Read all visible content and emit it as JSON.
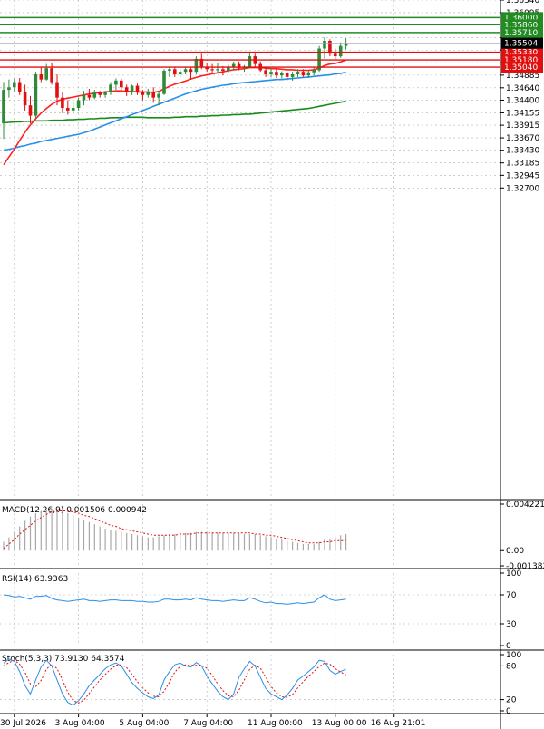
{
  "colors": {
    "bull": "#2e8b3a",
    "bear": "#e01010",
    "ma_fast": "#ff2020",
    "ma_mid": "#2a8fe8",
    "ma_slow": "#1a8a1a",
    "grid": "#b0b0b0",
    "resistance": "#228b22",
    "support": "#e01010",
    "macd_hist": "#a8a8a8",
    "macd_signal": "#e01010",
    "rsi": "#2a8fe8",
    "stoch_main": "#2a8fe8",
    "stoch_signal": "#e01010",
    "current_price_bg": "#000000"
  },
  "chart_data": [
    {
      "type": "candlestick",
      "ylim": [
        1.267,
        1.3634
      ],
      "price_ticks": [
        "1.36340",
        "1.36095",
        "1.35610",
        "1.35370",
        "1.35125",
        "1.34885",
        "1.34640",
        "1.34400",
        "1.34155",
        "1.33915",
        "1.33670",
        "1.33430",
        "1.33185",
        "1.32945",
        "1.32700"
      ],
      "levels": [
        {
          "price": 1.36,
          "label": "1.36000",
          "kind": "resistance"
        },
        {
          "price": 1.3586,
          "label": "1.35860",
          "kind": "resistance"
        },
        {
          "price": 1.3571,
          "label": "1.35710",
          "kind": "resistance"
        },
        {
          "price": 1.3533,
          "label": "1.35330",
          "kind": "support"
        },
        {
          "price": 1.3518,
          "label": "1.35180",
          "kind": "support"
        },
        {
          "price": 1.3504,
          "label": "1.35040",
          "kind": "support"
        }
      ],
      "current_price": {
        "price": 1.35504,
        "label": "1.35504"
      },
      "time_labels": [
        {
          "label": "30 Jul 2026",
          "bar": 2
        },
        {
          "label": "3 Aug 04:00",
          "bar": 14
        },
        {
          "label": "5 Aug 04:00",
          "bar": 26
        },
        {
          "label": "7 Aug 04:00",
          "bar": 38
        },
        {
          "label": "11 Aug 00:00",
          "bar": 50
        },
        {
          "label": "13 Aug 00:00",
          "bar": 62
        },
        {
          "label": "16 Aug 21:01",
          "bar": 73
        }
      ],
      "candles": [
        [
          1.3395,
          1.3475,
          1.3365,
          1.346
        ],
        [
          1.346,
          1.348,
          1.3445,
          1.3465
        ],
        [
          1.3465,
          1.3482,
          1.3455,
          1.3475
        ],
        [
          1.3475,
          1.3483,
          1.345,
          1.3455
        ],
        [
          1.3455,
          1.347,
          1.342,
          1.343
        ],
        [
          1.343,
          1.3448,
          1.3395,
          1.341
        ],
        [
          1.341,
          1.3495,
          1.3405,
          1.349
        ],
        [
          1.349,
          1.3505,
          1.3475,
          1.348
        ],
        [
          1.348,
          1.351,
          1.3478,
          1.3502
        ],
        [
          1.3502,
          1.3512,
          1.347,
          1.3475
        ],
        [
          1.3475,
          1.349,
          1.343,
          1.3445
        ],
        [
          1.3445,
          1.3455,
          1.3415,
          1.3425
        ],
        [
          1.3425,
          1.344,
          1.3412,
          1.342
        ],
        [
          1.342,
          1.3438,
          1.3413,
          1.3425
        ],
        [
          1.3425,
          1.3445,
          1.342,
          1.344
        ],
        [
          1.344,
          1.3458,
          1.343,
          1.345
        ],
        [
          1.345,
          1.3462,
          1.344,
          1.3445
        ],
        [
          1.3445,
          1.346,
          1.3442,
          1.3455
        ],
        [
          1.3455,
          1.3458,
          1.3445,
          1.345
        ],
        [
          1.345,
          1.3458,
          1.3445,
          1.3455
        ],
        [
          1.3455,
          1.3475,
          1.345,
          1.347
        ],
        [
          1.347,
          1.3482,
          1.346,
          1.3478
        ],
        [
          1.3478,
          1.3482,
          1.346,
          1.3465
        ],
        [
          1.3465,
          1.347,
          1.3448,
          1.3455
        ],
        [
          1.3455,
          1.347,
          1.345,
          1.3468
        ],
        [
          1.3468,
          1.3472,
          1.345,
          1.3455
        ],
        [
          1.3455,
          1.346,
          1.344,
          1.345
        ],
        [
          1.345,
          1.3462,
          1.3445,
          1.3455
        ],
        [
          1.3455,
          1.3465,
          1.3435,
          1.3445
        ],
        [
          1.3445,
          1.3458,
          1.343,
          1.3452
        ],
        [
          1.3452,
          1.35,
          1.345,
          1.3497
        ],
        [
          1.3497,
          1.3505,
          1.3485,
          1.35
        ],
        [
          1.35,
          1.3505,
          1.3485,
          1.349
        ],
        [
          1.349,
          1.35,
          1.3485,
          1.3495
        ],
        [
          1.3495,
          1.3505,
          1.349,
          1.35
        ],
        [
          1.35,
          1.3505,
          1.348,
          1.3495
        ],
        [
          1.3495,
          1.3525,
          1.349,
          1.352
        ],
        [
          1.352,
          1.353,
          1.35,
          1.3505
        ],
        [
          1.3505,
          1.3512,
          1.3495,
          1.35
        ],
        [
          1.35,
          1.351,
          1.3492,
          1.3498
        ],
        [
          1.3498,
          1.3512,
          1.3493,
          1.35
        ],
        [
          1.35,
          1.3506,
          1.3488,
          1.3497
        ],
        [
          1.3497,
          1.351,
          1.3492,
          1.3505
        ],
        [
          1.3505,
          1.3515,
          1.3498,
          1.351
        ],
        [
          1.351,
          1.3515,
          1.3498,
          1.3502
        ],
        [
          1.3502,
          1.3508,
          1.3495,
          1.3505
        ],
        [
          1.3505,
          1.3532,
          1.3502,
          1.3525
        ],
        [
          1.3525,
          1.353,
          1.3505,
          1.351
        ],
        [
          1.351,
          1.3515,
          1.3495,
          1.3498
        ],
        [
          1.3498,
          1.3503,
          1.3485,
          1.349
        ],
        [
          1.349,
          1.3502,
          1.3485,
          1.3495
        ],
        [
          1.3495,
          1.35,
          1.3483,
          1.3488
        ],
        [
          1.3488,
          1.3496,
          1.3482,
          1.3492
        ],
        [
          1.3492,
          1.3495,
          1.3478,
          1.3485
        ],
        [
          1.3485,
          1.3495,
          1.3478,
          1.349
        ],
        [
          1.349,
          1.35,
          1.3485,
          1.3495
        ],
        [
          1.3495,
          1.35,
          1.3485,
          1.3488
        ],
        [
          1.3488,
          1.3497,
          1.3483,
          1.3494
        ],
        [
          1.3494,
          1.3503,
          1.3488,
          1.3498
        ],
        [
          1.3498,
          1.3545,
          1.3495,
          1.354
        ],
        [
          1.354,
          1.3562,
          1.352,
          1.3555
        ],
        [
          1.3555,
          1.3558,
          1.3525,
          1.353
        ],
        [
          1.353,
          1.354,
          1.352,
          1.3525
        ],
        [
          1.3525,
          1.3552,
          1.3522,
          1.3545
        ],
        [
          1.3545,
          1.356,
          1.3538,
          1.355
        ]
      ],
      "ma_fast": [
        1.3315,
        1.333,
        1.3345,
        1.3362,
        1.3378,
        1.3392,
        1.3404,
        1.3415,
        1.3424,
        1.3432,
        1.3438,
        1.3442,
        1.3444,
        1.3446,
        1.3448,
        1.345,
        1.3452,
        1.3453,
        1.3455,
        1.3456,
        1.3457,
        1.3458,
        1.3458,
        1.3457,
        1.3457,
        1.3456,
        1.3456,
        1.3456,
        1.3455,
        1.3457,
        1.3462,
        1.3467,
        1.3471,
        1.3474,
        1.3477,
        1.3481,
        1.3484,
        1.3487,
        1.3489,
        1.3491,
        1.3493,
        1.3495,
        1.3497,
        1.3499,
        1.35,
        1.3501,
        1.3503,
        1.3503,
        1.3503,
        1.3502,
        1.3501,
        1.3501,
        1.35,
        1.3499,
        1.3499,
        1.3498,
        1.3498,
        1.3498,
        1.3499,
        1.3502,
        1.3507,
        1.351,
        1.3511,
        1.3514,
        1.3518
      ],
      "ma_mid": [
        1.3343,
        1.3345,
        1.3347,
        1.335,
        1.3352,
        1.3355,
        1.3357,
        1.336,
        1.3362,
        1.3364,
        1.3366,
        1.3368,
        1.337,
        1.3372,
        1.3374,
        1.3377,
        1.338,
        1.3384,
        1.3388,
        1.3392,
        1.3396,
        1.34,
        1.3404,
        1.3408,
        1.3412,
        1.3416,
        1.342,
        1.3424,
        1.3428,
        1.3432,
        1.3436,
        1.344,
        1.3444,
        1.3448,
        1.3452,
        1.3455,
        1.3458,
        1.3461,
        1.3463,
        1.3465,
        1.3467,
        1.3469,
        1.347,
        1.3472,
        1.3473,
        1.3474,
        1.3475,
        1.3476,
        1.3477,
        1.3478,
        1.3479,
        1.348,
        1.348,
        1.3481,
        1.3482,
        1.3483,
        1.3484,
        1.3485,
        1.3486,
        1.3487,
        1.3488,
        1.3489,
        1.3491,
        1.3492,
        1.3494
      ],
      "ma_slow": [
        1.3396,
        1.3397,
        1.3398,
        1.3398,
        1.3399,
        1.3399,
        1.34,
        1.34,
        1.34,
        1.3401,
        1.3401,
        1.3401,
        1.3402,
        1.3402,
        1.3403,
        1.3403,
        1.3404,
        1.3404,
        1.3405,
        1.3405,
        1.3406,
        1.3406,
        1.3406,
        1.3407,
        1.3407,
        1.3407,
        1.3407,
        1.3406,
        1.3406,
        1.3406,
        1.3406,
        1.3406,
        1.3407,
        1.3407,
        1.3408,
        1.3408,
        1.3408,
        1.3409,
        1.3409,
        1.341,
        1.341,
        1.3411,
        1.3411,
        1.3412,
        1.3412,
        1.3413,
        1.3413,
        1.3414,
        1.3415,
        1.3416,
        1.3417,
        1.3418,
        1.3419,
        1.342,
        1.3421,
        1.3422,
        1.3423,
        1.3424,
        1.3426,
        1.3428,
        1.343,
        1.3432,
        1.3434,
        1.3436,
        1.3438
      ]
    },
    {
      "type": "bar",
      "title": "MACD(12,26,9) 0.001506 0.000942",
      "ylim": [
        -0.00138,
        0.00422
      ],
      "ticks": [
        "0.004221",
        "0.00",
        "-0.001382"
      ],
      "hist": [
        0.0008,
        0.0012,
        0.0017,
        0.0022,
        0.0027,
        0.0031,
        0.0034,
        0.0036,
        0.0037,
        0.0038,
        0.0037,
        0.0036,
        0.0034,
        0.0032,
        0.003,
        0.0028,
        0.0026,
        0.0024,
        0.0022,
        0.002,
        0.0019,
        0.0018,
        0.0017,
        0.0016,
        0.0015,
        0.0014,
        0.0013,
        0.0012,
        0.0012,
        0.0013,
        0.0014,
        0.0015,
        0.0015,
        0.0016,
        0.0016,
        0.0016,
        0.0017,
        0.0017,
        0.0017,
        0.0016,
        0.0016,
        0.0016,
        0.0016,
        0.0016,
        0.0016,
        0.0015,
        0.0015,
        0.0015,
        0.0014,
        0.0013,
        0.0012,
        0.0011,
        0.001,
        0.0009,
        0.0008,
        0.0007,
        0.0006,
        0.0006,
        0.0006,
        0.0008,
        0.001,
        0.0011,
        0.0012,
        0.0014,
        0.0015
      ],
      "signal": [
        0.0002,
        0.0006,
        0.001,
        0.0015,
        0.0019,
        0.0023,
        0.0027,
        0.003,
        0.0033,
        0.0035,
        0.0036,
        0.0036,
        0.0036,
        0.0035,
        0.0034,
        0.0032,
        0.0031,
        0.0029,
        0.0027,
        0.0025,
        0.0023,
        0.0022,
        0.002,
        0.0019,
        0.0018,
        0.0017,
        0.0016,
        0.0015,
        0.0014,
        0.0014,
        0.0014,
        0.0014,
        0.0014,
        0.0015,
        0.0015,
        0.0015,
        0.0016,
        0.0016,
        0.0016,
        0.0016,
        0.0016,
        0.0016,
        0.0016,
        0.0016,
        0.0016,
        0.0016,
        0.0016,
        0.0015,
        0.0015,
        0.0014,
        0.0014,
        0.0013,
        0.0012,
        0.0011,
        0.001,
        0.0009,
        0.0008,
        0.0007,
        0.0007,
        0.0007,
        0.0008,
        0.0008,
        0.0009,
        0.0009,
        0.0009
      ]
    },
    {
      "type": "line",
      "title": "RSI(14) 63.9363",
      "ylim": [
        0,
        100
      ],
      "ticks": [
        "100",
        "70",
        "30",
        "0"
      ],
      "values": [
        70,
        69,
        67,
        68,
        66,
        64,
        68,
        68,
        69,
        65,
        63,
        62,
        61,
        62,
        63,
        64,
        62,
        62,
        61,
        62,
        63,
        63,
        62,
        62,
        62,
        61,
        61,
        60,
        60,
        61,
        64,
        64,
        63,
        63,
        64,
        63,
        66,
        64,
        63,
        62,
        62,
        61,
        62,
        63,
        62,
        62,
        66,
        64,
        61,
        59,
        60,
        58,
        58,
        57,
        58,
        59,
        58,
        59,
        60,
        66,
        70,
        64,
        62,
        63,
        64
      ]
    },
    {
      "type": "line",
      "title": "Stoch(5,3,3) 73.9130 64.3574",
      "ylim": [
        0,
        100
      ],
      "ticks": [
        "100",
        "80",
        "20",
        "0"
      ],
      "k": [
        85,
        92,
        88,
        70,
        45,
        30,
        55,
        78,
        90,
        80,
        55,
        30,
        15,
        10,
        18,
        30,
        45,
        55,
        65,
        75,
        82,
        85,
        80,
        65,
        50,
        40,
        32,
        25,
        22,
        28,
        55,
        70,
        82,
        85,
        80,
        78,
        86,
        80,
        62,
        48,
        35,
        25,
        20,
        30,
        60,
        75,
        88,
        80,
        60,
        40,
        30,
        25,
        20,
        28,
        40,
        55,
        62,
        70,
        78,
        90,
        88,
        72,
        65,
        70,
        74
      ],
      "d": [
        80,
        86,
        90,
        83,
        68,
        48,
        43,
        54,
        74,
        83,
        75,
        55,
        33,
        18,
        14,
        19,
        31,
        43,
        55,
        65,
        74,
        81,
        82,
        77,
        65,
        52,
        41,
        32,
        26,
        25,
        35,
        51,
        69,
        79,
        82,
        81,
        81,
        81,
        76,
        63,
        48,
        36,
        27,
        25,
        37,
        55,
        74,
        81,
        76,
        60,
        43,
        32,
        25,
        24,
        29,
        41,
        52,
        62,
        70,
        79,
        85,
        83,
        75,
        69,
        64
      ]
    }
  ]
}
